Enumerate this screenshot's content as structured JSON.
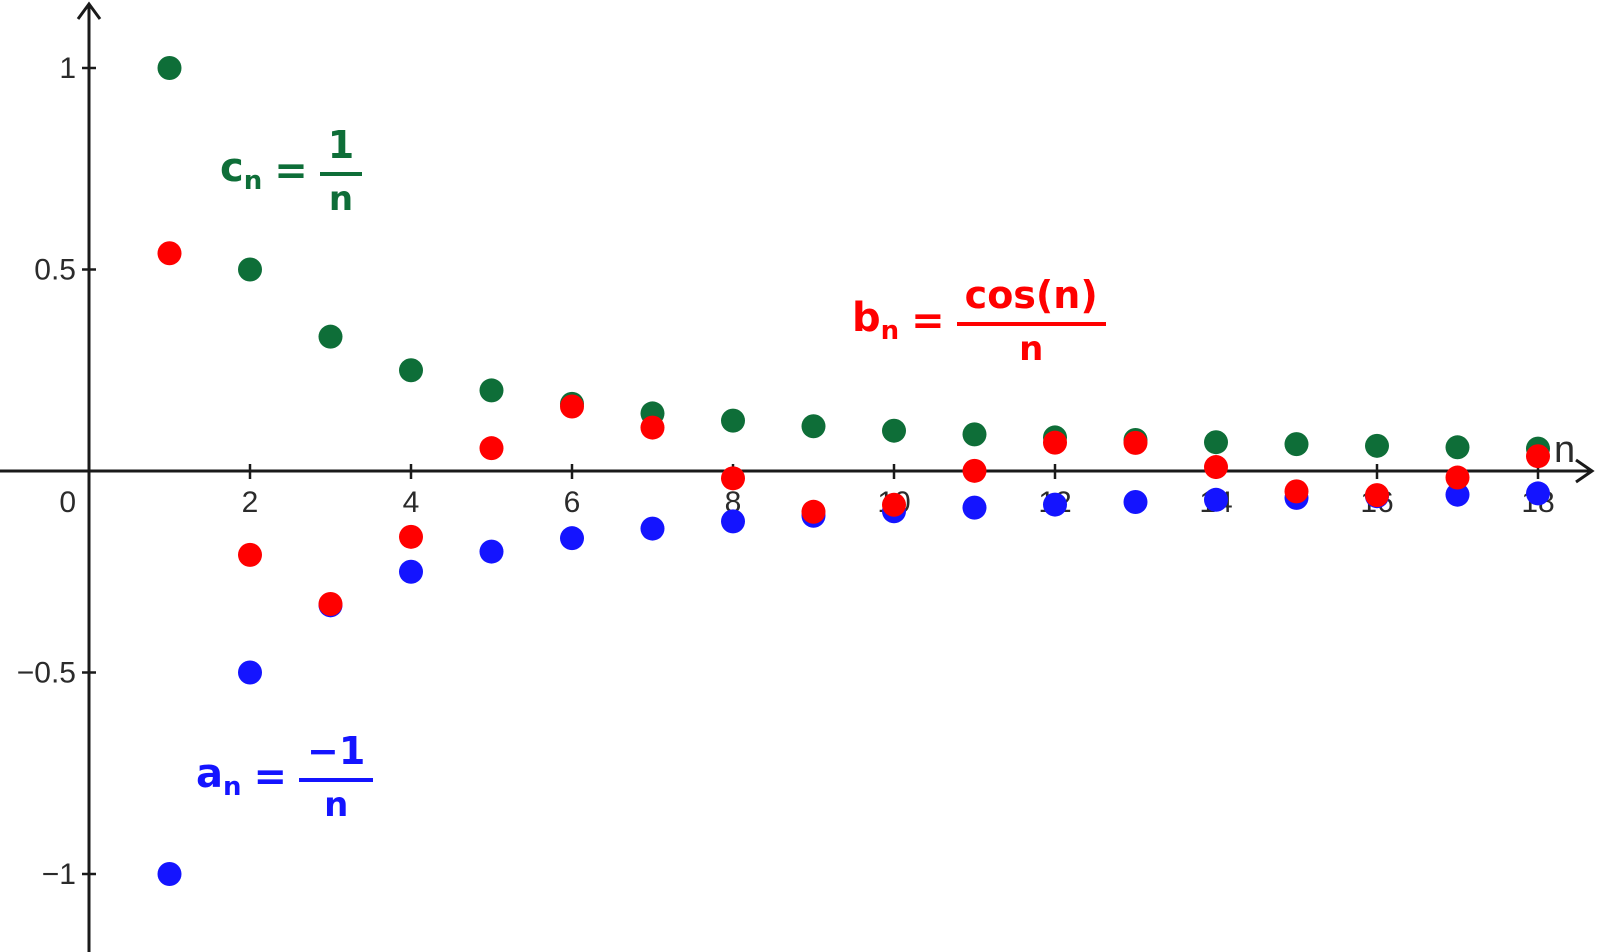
{
  "figure": {
    "background": "#ffffff",
    "axis_color": "#1a1a1a",
    "tick_label_color": "#2b2b2b",
    "x_axis_name": "n",
    "origin_label": "0",
    "x_ticks": [
      {
        "n": 2,
        "label": "2"
      },
      {
        "n": 4,
        "label": "4"
      },
      {
        "n": 6,
        "label": "6"
      },
      {
        "n": 8,
        "label": "8"
      },
      {
        "n": 10,
        "label": "10"
      },
      {
        "n": 12,
        "label": "12"
      },
      {
        "n": 14,
        "label": "14"
      },
      {
        "n": 16,
        "label": "16"
      },
      {
        "n": 18,
        "label": "18"
      }
    ],
    "y_ticks": [
      {
        "v": 1,
        "label": "1"
      },
      {
        "v": 0.5,
        "label": "0.5"
      },
      {
        "v": -0.5,
        "label": "−0.5"
      },
      {
        "v": -1,
        "label": "−1"
      }
    ]
  },
  "formulas": {
    "c": {
      "base": "c",
      "sub": "n",
      "eq": "=",
      "num": "1",
      "den": "n",
      "color": "#0e6e38"
    },
    "b": {
      "base": "b",
      "sub": "n",
      "eq": "=",
      "num": "cos(n)",
      "den": "n",
      "color": "#ff0000"
    },
    "a": {
      "base": "a",
      "sub": "n",
      "eq": "=",
      "num": "−1",
      "den": "n",
      "color": "#1414ff"
    }
  },
  "chart_data": {
    "type": "scatter",
    "title": "",
    "xlabel": "n",
    "ylabel": "",
    "xlim": [
      0,
      18.8
    ],
    "ylim": [
      -1.19,
      1.17
    ],
    "grid": false,
    "legend_position": "inline-labels",
    "point_radius_px": 12,
    "x": [
      1,
      2,
      3,
      4,
      5,
      6,
      7,
      8,
      9,
      10,
      11,
      12,
      13,
      14,
      15,
      16,
      17,
      18
    ],
    "series": [
      {
        "name": "c_n = 1/n",
        "color": "#0e6e38",
        "values": [
          1.0,
          0.5,
          0.3333,
          0.25,
          0.2,
          0.1667,
          0.1429,
          0.125,
          0.1111,
          0.1,
          0.0909,
          0.0833,
          0.0769,
          0.0714,
          0.0667,
          0.0625,
          0.0588,
          0.0556
        ]
      },
      {
        "name": "a_n = -1/n",
        "color": "#1414ff",
        "values": [
          -1.0,
          -0.5,
          -0.3333,
          -0.25,
          -0.2,
          -0.1667,
          -0.1429,
          -0.125,
          -0.1111,
          -0.1,
          -0.0909,
          -0.0833,
          -0.0769,
          -0.0714,
          -0.0667,
          -0.0625,
          -0.0588,
          -0.0556
        ]
      },
      {
        "name": "b_n = cos(n)/n",
        "color": "#ff0000",
        "values": [
          0.5403,
          -0.2081,
          -0.33,
          -0.1634,
          0.0567,
          0.16,
          0.1077,
          -0.0182,
          -0.1012,
          -0.0839,
          0.0004,
          0.0703,
          0.0698,
          0.0098,
          -0.0506,
          -0.0599,
          -0.0162,
          0.0367
        ]
      }
    ]
  }
}
